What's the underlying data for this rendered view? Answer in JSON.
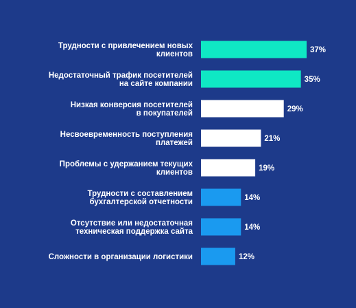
{
  "chart_data": {
    "type": "bar",
    "orientation": "horizontal",
    "title": "",
    "xlabel": "",
    "ylabel": "",
    "xlim": [
      0,
      37
    ],
    "grid": false,
    "unit": "%",
    "categories": [
      [
        "Трудности с привлечением новых",
        "клиентов"
      ],
      [
        "Недостаточный трафик посетителей",
        "на сайте компании"
      ],
      [
        "Низкая конверсия посетителей",
        "в покупателей"
      ],
      [
        "Несвоевременность поступления",
        "платежей"
      ],
      [
        "Проблемы с удержанием текущих",
        "клиентов"
      ],
      [
        "Трудности с составлением",
        "бухгалтерской отчетности"
      ],
      [
        "Отсутствие или недостаточная",
        "техническая поддержка сайта"
      ],
      [
        "Сложности в организации логистики"
      ]
    ],
    "values": [
      37,
      35,
      29,
      21,
      19,
      14,
      14,
      12
    ],
    "value_labels": [
      "37%",
      "35%",
      "29%",
      "21%",
      "19%",
      "14%",
      "14%",
      "12%"
    ],
    "bar_colors": [
      "#0fe8c4",
      "#0fe8c4",
      "#ffffff",
      "#ffffff",
      "#ffffff",
      "#1a9af0",
      "#1a9af0",
      "#1a9af0"
    ]
  },
  "colors": {
    "background": "#1d3a8a",
    "text": "#ffffff"
  }
}
